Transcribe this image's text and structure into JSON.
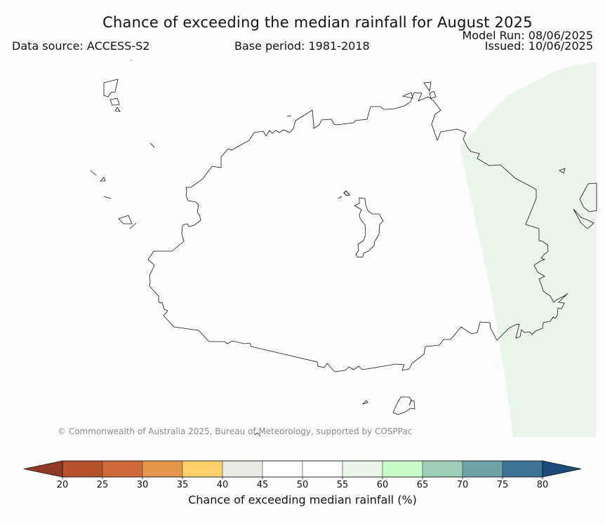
{
  "header": {
    "title": "Chance of exceeding the median rainfall for August 2025",
    "data_source": "Data source: ACCESS-S2",
    "base_period": "Base period: 1981-2018",
    "model_run": "Model Run: 08/06/2025",
    "issued": "Issued: 10/06/2025"
  },
  "map": {
    "copyright": "© Commonwealth of Australia 2025, Bureau of Meteorology, supported by COSPPac",
    "shading": [
      {
        "region": "east",
        "bin": "55-60",
        "color": "#ebf6ea"
      }
    ]
  },
  "colorbar": {
    "label": "Chance of exceeding median rainfall (%)",
    "ticks": [
      "20",
      "25",
      "30",
      "35",
      "40",
      "45",
      "50",
      "55",
      "60",
      "65",
      "70",
      "75",
      "80"
    ],
    "colors": [
      "#8e3a24",
      "#b6512d",
      "#d0693b",
      "#e5964b",
      "#ffd069",
      "#ebebe6",
      "#ffffff",
      "#ffffff",
      "#ebf6ea",
      "#c8fcc8",
      "#9dcfb6",
      "#6da2a6",
      "#3e7396",
      "#1a4b7b"
    ]
  }
}
